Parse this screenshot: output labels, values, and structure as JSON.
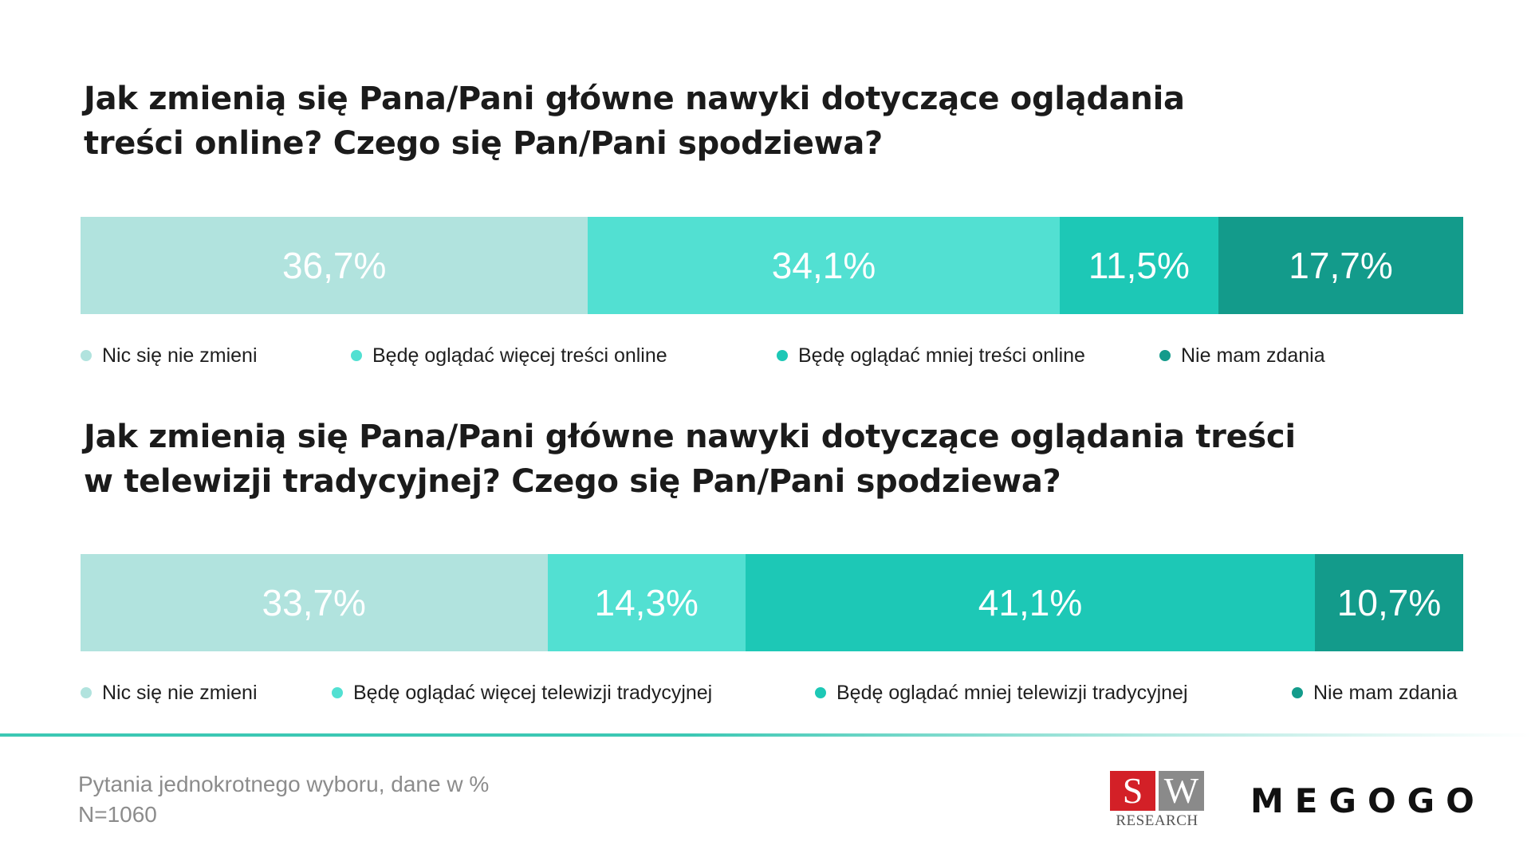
{
  "chart_data": [
    {
      "type": "bar",
      "stacked": true,
      "orientation": "horizontal",
      "title_lines": [
        "Jak zmienią się Pana/Pani główne nawyki dotyczące oglądania",
        "treści online? Czego się Pan/Pani spodziewa?"
      ],
      "series": [
        {
          "name": "Nic się nie zmieni",
          "value": 36.7,
          "label": "36,7%",
          "color": "#b1e3de"
        },
        {
          "name": "Będę oglądać więcej treści online",
          "value": 34.1,
          "label": "34,1%",
          "color": "#52e0d2"
        },
        {
          "name": "Będę oglądać mniej treści online",
          "value": 11.5,
          "label": "11,5%",
          "color": "#1dc8b6"
        },
        {
          "name": "Nie mam zdania",
          "value": 17.7,
          "label": "17,7%",
          "color": "#139b8b"
        }
      ]
    },
    {
      "type": "bar",
      "stacked": true,
      "orientation": "horizontal",
      "title_lines": [
        "Jak zmienią się Pana/Pani główne nawyki dotyczące oglądania treści",
        "w telewizji tradycyjnej? Czego się Pan/Pani spodziewa?"
      ],
      "series": [
        {
          "name": "Nic się nie zmieni",
          "value": 33.7,
          "label": "33,7%",
          "color": "#b1e3de"
        },
        {
          "name": "Będę oglądać więcej telewizji tradycyjnej",
          "value": 14.3,
          "label": "14,3%",
          "color": "#52e0d2"
        },
        {
          "name": "Będę oglądać mniej telewizji tradycyjnej",
          "value": 41.1,
          "label": "41,1%",
          "color": "#1dc8b6"
        },
        {
          "name": "Nie mam zdania",
          "value": 10.7,
          "label": "10,7%",
          "color": "#139b8b"
        }
      ]
    }
  ],
  "footer": {
    "note": "Pytania jednokrotnego wyboru, dane w %",
    "sample": "N=1060"
  },
  "logos": {
    "sw_s": "S",
    "sw_w": "W",
    "sw_research": "RESEARCH",
    "megogo": "MEGOGO"
  },
  "colors": {
    "accent": "#3cc8b4",
    "sw_red": "#d32027",
    "sw_gray": "#8a8a8a"
  }
}
